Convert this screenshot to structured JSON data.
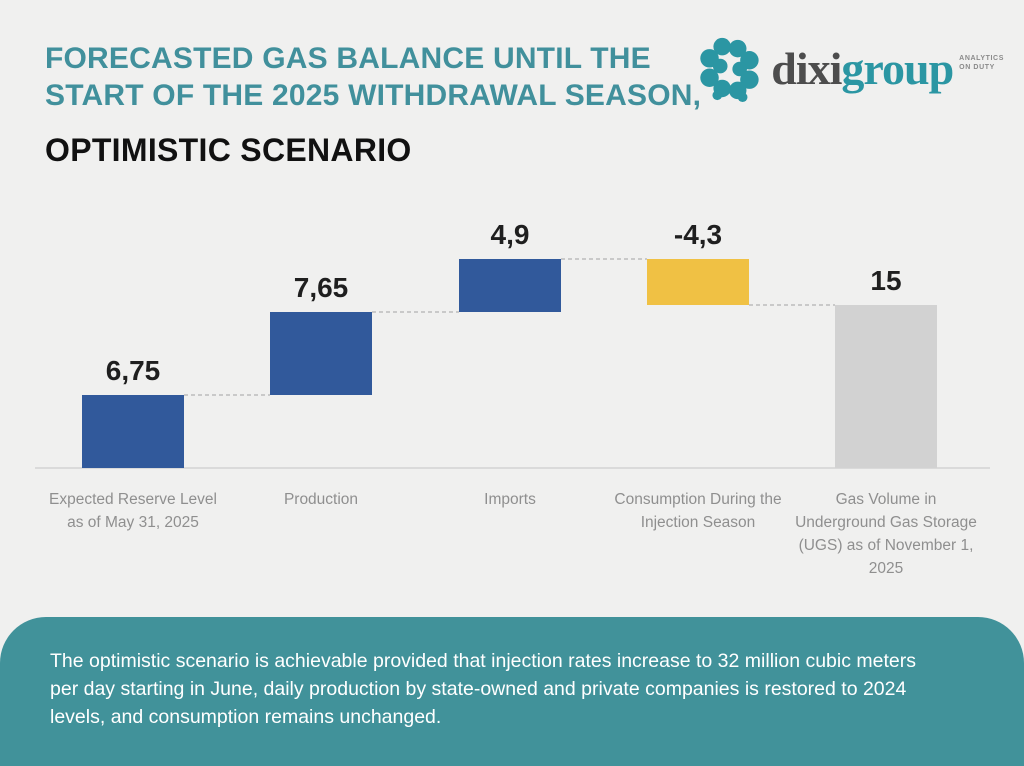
{
  "header": {
    "title_line1": "FORECASTED GAS BALANCE UNTIL THE",
    "title_line2": "START OF THE 2025 WITHDRAWAL SEASON,",
    "subtitle": "OPTIMISTIC SCENARIO"
  },
  "logo": {
    "brand_primary": "dixi",
    "brand_secondary": "group",
    "tagline": "ANALYTICS\nON DUTY"
  },
  "colors": {
    "background": "#F0F0EF",
    "title_teal": "#41909C",
    "footer_teal": "#41929A",
    "bar_blue": "#31599B",
    "bar_yellow": "#F0C144",
    "bar_gray": "#D2D2D2",
    "axis_gray": "#DADADA",
    "category_label_gray": "#8F8F8F"
  },
  "chart_data": {
    "type": "bar",
    "subtype": "waterfall",
    "title": "Forecasted gas balance until the start of the 2025 withdrawal season, optimistic scenario",
    "xlabel": "",
    "ylabel": "",
    "ylim": [
      0,
      21
    ],
    "grid": false,
    "legend": false,
    "categories": [
      "Expected Reserve Level as of May 31, 2025",
      "Production",
      "Imports",
      "Consumption During the Injection Season",
      "Gas Volume in Underground Gas Storage (UGS) as of November 1, 2025"
    ],
    "steps": [
      {
        "label": "Expected Reserve Level as of May 31, 2025",
        "value": 6.75,
        "display": "6,75",
        "kind": "increase",
        "color": "#31599B"
      },
      {
        "label": "Production",
        "value": 7.65,
        "display": "7,65",
        "kind": "increase",
        "color": "#31599B"
      },
      {
        "label": "Imports",
        "value": 4.9,
        "display": "4,9",
        "kind": "increase",
        "color": "#31599B"
      },
      {
        "label": "Consumption During the Injection Season",
        "value": -4.3,
        "display": "-4,3",
        "kind": "decrease",
        "color": "#F0C144"
      },
      {
        "label": "Gas Volume in Underground Gas Storage (UGS) as of November 1, 2025",
        "value": 15,
        "display": "15",
        "kind": "total",
        "color": "#D2D2D2"
      }
    ]
  },
  "footer": {
    "note": "The optimistic scenario is achievable provided that injection rates increase to 32 million cubic meters per day starting in June, daily production by state-owned and private companies is restored to 2024 levels, and consumption remains unchanged."
  }
}
